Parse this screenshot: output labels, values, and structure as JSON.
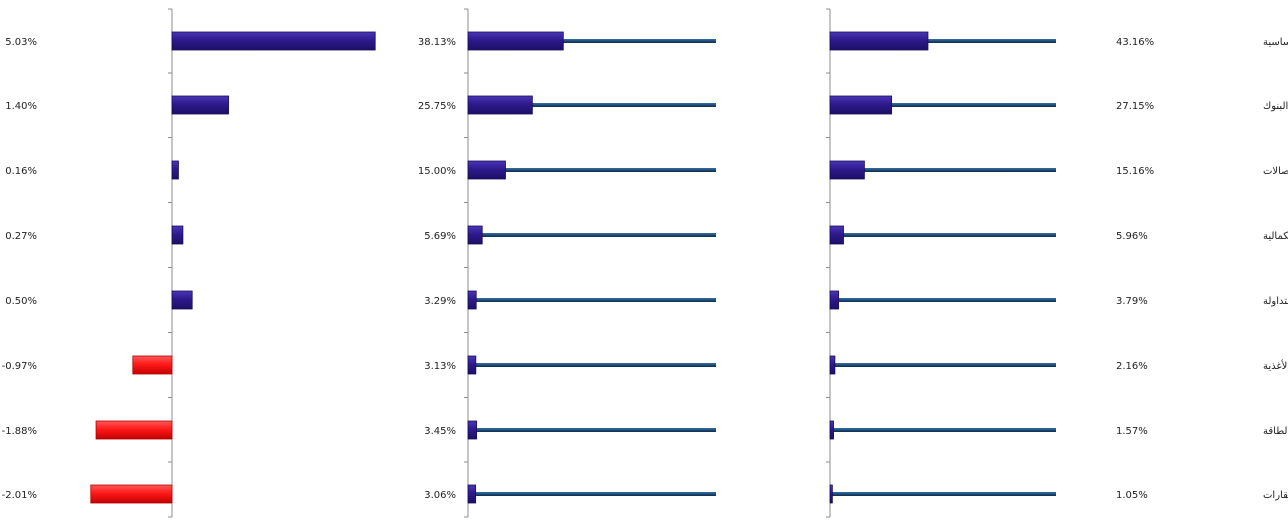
{
  "colors": {
    "bar": "#2e1a8c",
    "bar_edge": "#1a0e5e",
    "bar_negative": "#ff1a1a",
    "bar_negative_edge": "#b30000",
    "track": "#1f4e79",
    "axis": "#8c8c8c"
  },
  "chart_data": [
    {
      "type": "bar",
      "orientation": "horizontal",
      "value_labels": [
        "5.03%",
        "1.40%",
        "0.16%",
        "0.27%",
        "0.50%",
        "-0.97%",
        "-1.88%",
        "-2.01%"
      ],
      "values": [
        5.03,
        1.4,
        0.16,
        0.27,
        0.5,
        -0.97,
        -1.88,
        -2.01
      ],
      "xlim": [
        -2.0,
        5.0
      ],
      "grid": false
    },
    {
      "type": "bar",
      "orientation": "horizontal",
      "value_labels": [
        "38.13%",
        "25.75%",
        "15.00%",
        "5.69%",
        "3.29%",
        "3.13%",
        "3.45%",
        "3.06%"
      ],
      "values": [
        38.13,
        25.75,
        15.0,
        5.69,
        3.29,
        3.13,
        3.45,
        3.06
      ],
      "xlim": [
        0,
        100
      ],
      "grid": false
    },
    {
      "type": "bar",
      "orientation": "horizontal",
      "categories": [
        "المواد الأساسية",
        "البنوك",
        "الإتصالات",
        "تجزئة السلع الكمالية",
        "الصناديق العقارية المتداولة",
        "تجزئة الأغذية",
        "الطاقة",
        "إدارة وتطوير العقارات"
      ],
      "value_labels": [
        "43.16%",
        "27.15%",
        "15.16%",
        "5.96%",
        "3.79%",
        "2.16%",
        "1.57%",
        "1.05%"
      ],
      "values": [
        43.16,
        27.15,
        15.16,
        5.96,
        3.79,
        2.16,
        1.57,
        1.05
      ],
      "xlim": [
        0,
        100
      ],
      "grid": false
    }
  ]
}
